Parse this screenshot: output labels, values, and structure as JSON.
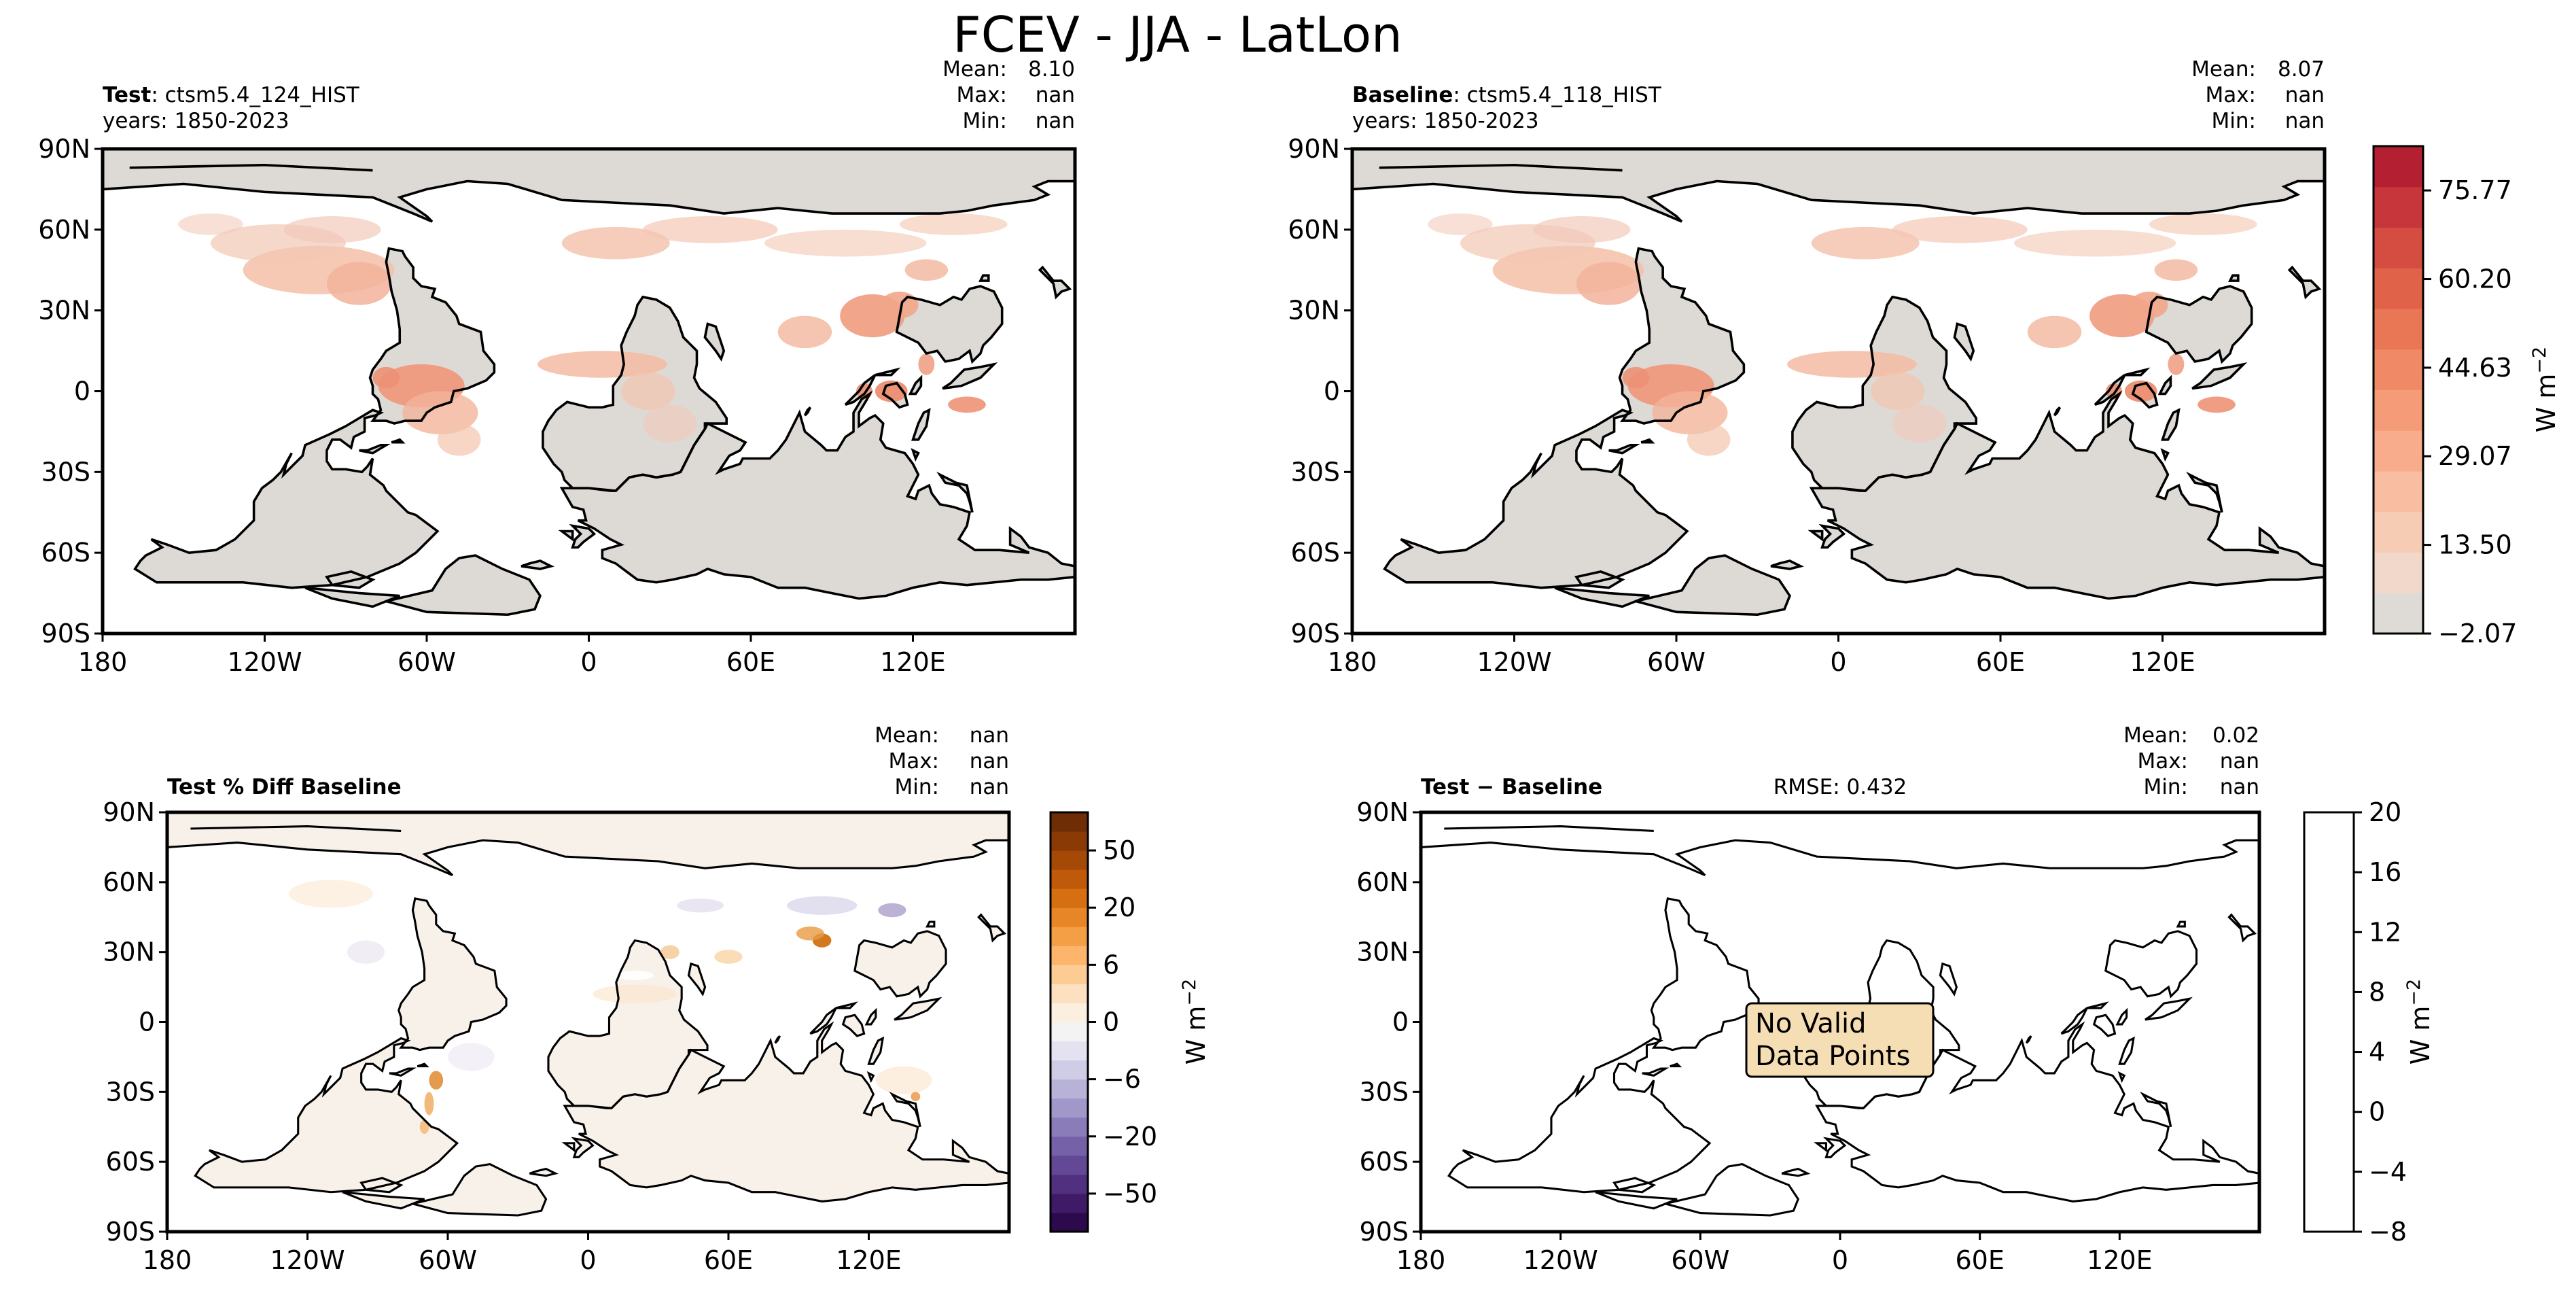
{
  "figure": {
    "title": "FCEV - JJA - LatLon"
  },
  "panels": {
    "test": {
      "label_bold": "Test",
      "label_rest": ": ctsm5.4_124_HIST",
      "years": "years: 1850-2023",
      "stats": {
        "mean_label": "Mean:",
        "mean": "8.10",
        "max_label": "Max:",
        "max": "nan",
        "min_label": "Min:",
        "min": "nan"
      }
    },
    "baseline": {
      "label_bold": "Baseline",
      "label_rest": ": ctsm5.4_118_HIST",
      "years": "years: 1850-2023",
      "stats": {
        "mean_label": "Mean:",
        "mean": "8.07",
        "max_label": "Max:",
        "max": "nan",
        "min_label": "Min:",
        "min": "nan"
      }
    },
    "pct_diff": {
      "label_bold": "Test % Diff Baseline",
      "stats": {
        "mean_label": "Mean:",
        "mean": "nan",
        "max_label": "Max:",
        "max": "nan",
        "min_label": "Min:",
        "min": "nan"
      }
    },
    "diff": {
      "label_bold": "Test − Baseline",
      "rmse": "RMSE: 0.432",
      "stats": {
        "mean_label": "Mean:",
        "mean": "0.02",
        "max_label": "Max:",
        "max": "nan",
        "min_label": "Min:",
        "min": "nan"
      },
      "no_data_line1": "No Valid",
      "no_data_line2": "Data Points"
    }
  },
  "axes": {
    "lat_ticks": [
      "90N",
      "60N",
      "30N",
      "0",
      "30S",
      "60S",
      "90S"
    ],
    "lon_ticks": [
      "180",
      "120W",
      "60W",
      "0",
      "60E",
      "120E"
    ]
  },
  "colorbars": {
    "abs": {
      "ticks": [
        "75.77",
        "60.20",
        "44.63",
        "29.07",
        "13.50",
        "−2.07"
      ],
      "tick_values": [
        75.77,
        60.2,
        44.63,
        29.07,
        13.5,
        -2.07
      ],
      "range": [
        -2.07,
        83.55
      ],
      "label": "W m",
      "label_exp": "−2",
      "colors": [
        "#dedad6",
        "#f2d8cb",
        "#f7ccb5",
        "#f9bda1",
        "#f8ac8c",
        "#f59b78",
        "#f08a66",
        "#e97756",
        "#e06249",
        "#d44d40",
        "#c6363a",
        "#b51f32"
      ]
    },
    "pct": {
      "ticks": [
        "50",
        "20",
        "6",
        "0",
        "−6",
        "−20",
        "−50"
      ],
      "label": "W m",
      "label_exp": "−2",
      "colors": [
        "#2d0a4b",
        "#3f1a66",
        "#51307f",
        "#634895",
        "#7561a8",
        "#8a7cb9",
        "#a198c9",
        "#b8b2d8",
        "#cfcce6",
        "#e4e2f0",
        "#f3f3f3",
        "#fbefe0",
        "#fde0bf",
        "#fdcc95",
        "#fcb56b",
        "#f49e45",
        "#e78627",
        "#d66e12",
        "#c05a0b",
        "#a54906",
        "#8a3a05",
        "#6e2d04"
      ]
    },
    "diff": {
      "ticks": [
        "20",
        "16",
        "12",
        "8",
        "4",
        "0",
        "−4",
        "−8"
      ],
      "tick_values": [
        20,
        16,
        12,
        8,
        4,
        0,
        -4,
        -8
      ],
      "range": [
        -8,
        20
      ],
      "label": "W m",
      "label_exp": "−2"
    }
  },
  "colors": {
    "land_base": "#dddad6",
    "frame": "#000000",
    "annotation_fill": "#f5deb3"
  },
  "chart_data": [
    {
      "type": "heatmap",
      "title": "Test",
      "lat_ticks": [
        "90N",
        "60N",
        "30N",
        "0",
        "30S",
        "60S",
        "90S"
      ],
      "lon_ticks": [
        "180",
        "120W",
        "60W",
        "0",
        "60E",
        "120E"
      ],
      "colorbar_range": [
        -2.07,
        83.55
      ],
      "colorbar_ticks": [
        75.77,
        60.2,
        44.63,
        29.07,
        13.5,
        -2.07
      ],
      "colorbar_label": "W m⁻²",
      "stats": {
        "mean": 8.1,
        "max": "nan",
        "min": "nan"
      }
    },
    {
      "type": "heatmap",
      "title": "Baseline",
      "lat_ticks": [
        "90N",
        "60N",
        "30N",
        "0",
        "30S",
        "60S",
        "90S"
      ],
      "lon_ticks": [
        "180",
        "120W",
        "60W",
        "0",
        "60E",
        "120E"
      ],
      "colorbar_range": [
        -2.07,
        83.55
      ],
      "colorbar_ticks": [
        75.77,
        60.2,
        44.63,
        29.07,
        13.5,
        -2.07
      ],
      "colorbar_label": "W m⁻²",
      "stats": {
        "mean": 8.07,
        "max": "nan",
        "min": "nan"
      }
    },
    {
      "type": "heatmap",
      "title": "Test % Diff Baseline",
      "lat_ticks": [
        "90N",
        "60N",
        "30N",
        "0",
        "30S",
        "60S",
        "90S"
      ],
      "lon_ticks": [
        "180",
        "120W",
        "60W",
        "0",
        "60E",
        "120E"
      ],
      "colorbar_ticks": [
        50,
        20,
        6,
        0,
        -6,
        -20,
        -50
      ],
      "colorbar_label": "W m⁻²",
      "stats": {
        "mean": "nan",
        "max": "nan",
        "min": "nan"
      }
    },
    {
      "type": "heatmap",
      "title": "Test − Baseline",
      "lat_ticks": [
        "90N",
        "60N",
        "30N",
        "0",
        "30S",
        "60S",
        "90S"
      ],
      "lon_ticks": [
        "180",
        "120W",
        "60W",
        "0",
        "60E",
        "120E"
      ],
      "colorbar_range": [
        -8,
        20
      ],
      "colorbar_ticks": [
        20,
        16,
        12,
        8,
        4,
        0,
        -4,
        -8
      ],
      "colorbar_label": "W m⁻²",
      "rmse": 0.432,
      "stats": {
        "mean": 0.02,
        "max": "nan",
        "min": "nan"
      },
      "annotation": "No Valid Data Points"
    }
  ]
}
